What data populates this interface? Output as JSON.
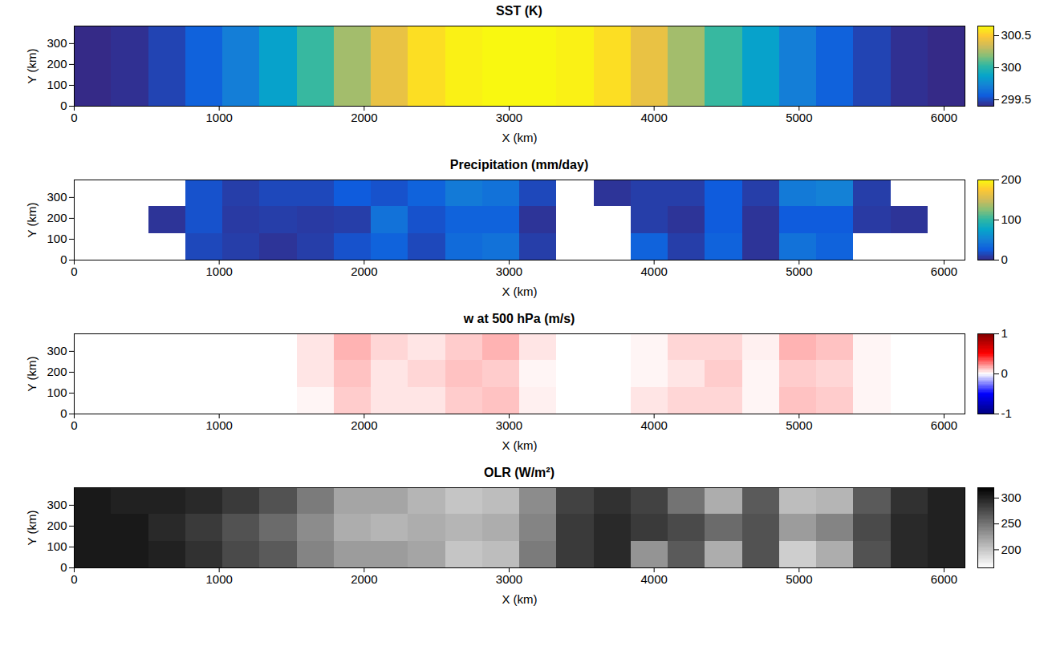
{
  "chart_data": [
    {
      "type": "heatmap",
      "title": "SST (K)",
      "xlabel": "X (km)",
      "ylabel": "Y (km)",
      "x": [
        0,
        256,
        512,
        768,
        1024,
        1280,
        1536,
        1792,
        2048,
        2304,
        2560,
        2816,
        3072,
        3328,
        3584,
        3840,
        4096,
        4352,
        4608,
        4864,
        5120,
        5376,
        5632,
        5888,
        6144
      ],
      "y": [
        0,
        384
      ],
      "values": [
        [
          299.4,
          299.42,
          299.48,
          299.58,
          299.7,
          299.86,
          300.04,
          300.24,
          300.42,
          300.56,
          300.62,
          300.64,
          300.64,
          300.62,
          300.56,
          300.42,
          300.24,
          300.04,
          299.86,
          299.7,
          299.58,
          299.48,
          299.42,
          299.4
        ]
      ],
      "xlim": [
        0,
        6144
      ],
      "ylim": [
        0,
        384
      ],
      "xticks": [
        0,
        1000,
        2000,
        3000,
        4000,
        5000,
        6000
      ],
      "yticks": [
        0,
        100,
        200,
        300
      ],
      "color": "parula",
      "colorbar": {
        "range": [
          299.4,
          300.65
        ],
        "ticks": [
          299.5,
          300,
          300.5
        ]
      }
    },
    {
      "type": "heatmap",
      "title": "Precipitation (mm/day)",
      "xlabel": "X (km)",
      "ylabel": "Y (km)",
      "x": [
        0,
        256,
        512,
        768,
        1024,
        1280,
        1536,
        1792,
        2048,
        2304,
        2560,
        2816,
        3072,
        3328,
        3584,
        3840,
        4096,
        4352,
        4608,
        4864,
        5120,
        5376,
        5632,
        5888,
        6144
      ],
      "y": [
        0,
        128,
        256,
        384
      ],
      "values": [
        [
          null,
          null,
          null,
          15,
          10,
          5,
          10,
          20,
          30,
          15,
          35,
          40,
          10,
          null,
          null,
          30,
          10,
          30,
          5,
          40,
          30,
          null,
          null,
          null
        ],
        [
          null,
          null,
          5,
          20,
          8,
          10,
          8,
          10,
          40,
          20,
          30,
          30,
          5,
          null,
          null,
          10,
          5,
          25,
          5,
          25,
          25,
          8,
          5,
          null
        ],
        [
          null,
          null,
          null,
          20,
          10,
          15,
          15,
          25,
          20,
          30,
          45,
          40,
          15,
          null,
          5,
          10,
          10,
          25,
          10,
          45,
          50,
          10,
          null,
          null
        ]
      ],
      "xlim": [
        0,
        6144
      ],
      "ylim": [
        0,
        384
      ],
      "xticks": [
        0,
        1000,
        2000,
        3000,
        4000,
        5000,
        6000
      ],
      "yticks": [
        0,
        100,
        200,
        300
      ],
      "color": "parula",
      "colorbar": {
        "range": [
          0,
          200
        ],
        "ticks": [
          0,
          100,
          200
        ]
      }
    },
    {
      "type": "heatmap",
      "title": "w at 500 hPa (m/s)",
      "xlabel": "X (km)",
      "ylabel": "Y (km)",
      "x": [
        0,
        256,
        512,
        768,
        1024,
        1280,
        1536,
        1792,
        2048,
        2304,
        2560,
        2816,
        3072,
        3328,
        3584,
        3840,
        4096,
        4352,
        4608,
        4864,
        5120,
        5376,
        5632,
        5888,
        6144
      ],
      "y": [
        0,
        128,
        256,
        384
      ],
      "values": [
        [
          0,
          0,
          0,
          0,
          0,
          0,
          0.02,
          0.1,
          0.05,
          0.05,
          0.1,
          0.12,
          0.03,
          0,
          0,
          0.05,
          0.08,
          0.08,
          0.02,
          0.12,
          0.1,
          0.02,
          0,
          0
        ],
        [
          0,
          0,
          0,
          0,
          0,
          0,
          0.05,
          0.12,
          0.05,
          0.08,
          0.12,
          0.1,
          0.02,
          0,
          0,
          0.02,
          0.05,
          0.1,
          0.02,
          0.1,
          0.08,
          0.02,
          0,
          0
        ],
        [
          0,
          0,
          0,
          0,
          0,
          0,
          0.05,
          0.15,
          0.08,
          0.05,
          0.1,
          0.15,
          0.05,
          0,
          0,
          0.02,
          0.08,
          0.08,
          0.03,
          0.15,
          0.12,
          0.02,
          0,
          0
        ]
      ],
      "xlim": [
        0,
        6144
      ],
      "ylim": [
        0,
        384
      ],
      "xticks": [
        0,
        1000,
        2000,
        3000,
        4000,
        5000,
        6000
      ],
      "yticks": [
        0,
        100,
        200,
        300
      ],
      "color": "bwr",
      "colorbar": {
        "range": [
          -1,
          1
        ],
        "ticks": [
          -1,
          0,
          1
        ]
      }
    },
    {
      "type": "heatmap",
      "title": "OLR (W/m²)",
      "xlabel": "X (km)",
      "ylabel": "Y (km)",
      "x": [
        0,
        256,
        512,
        768,
        1024,
        1280,
        1536,
        1792,
        2048,
        2304,
        2560,
        2816,
        3072,
        3328,
        3584,
        3840,
        4096,
        4352,
        4608,
        4864,
        5120,
        5376,
        5632,
        5888,
        6144
      ],
      "y": [
        0,
        128,
        256,
        384
      ],
      "values": [
        [
          305,
          305,
          300,
          290,
          275,
          265,
          240,
          225,
          225,
          220,
          200,
          205,
          245,
          285,
          295,
          230,
          265,
          215,
          270,
          195,
          215,
          270,
          295,
          300
        ],
        [
          305,
          305,
          295,
          285,
          270,
          255,
          235,
          215,
          210,
          215,
          210,
          215,
          240,
          285,
          295,
          285,
          275,
          255,
          270,
          225,
          240,
          275,
          295,
          300
        ],
        [
          305,
          300,
          300,
          295,
          285,
          270,
          245,
          220,
          220,
          210,
          200,
          205,
          235,
          280,
          290,
          280,
          250,
          215,
          265,
          205,
          210,
          265,
          290,
          300
        ]
      ],
      "xlim": [
        0,
        6144
      ],
      "ylim": [
        0,
        384
      ],
      "xticks": [
        0,
        1000,
        2000,
        3000,
        4000,
        5000,
        6000
      ],
      "yticks": [
        0,
        100,
        200,
        300
      ],
      "color": "greys",
      "colorbar": {
        "range": [
          165,
          320
        ],
        "ticks": [
          200,
          250,
          300
        ]
      }
    }
  ]
}
